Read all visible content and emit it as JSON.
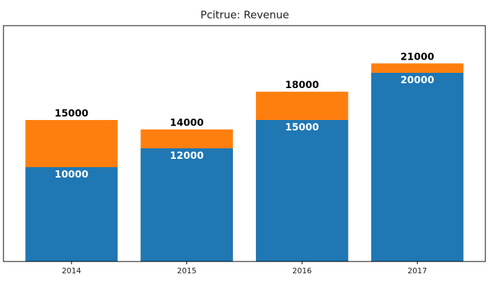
{
  "chart_data": {
    "type": "bar",
    "title": "Pcitrue: Revenue",
    "categories": [
      "2014",
      "2015",
      "2016",
      "2017"
    ],
    "stacked": false,
    "series": [
      {
        "color": "#ff7f0e",
        "values": [
          15000,
          14000,
          18000,
          21000
        ]
      },
      {
        "color": "#1f77b4",
        "values": [
          10000,
          12000,
          15000,
          20000
        ]
      }
    ],
    "ylim": [
      0,
      25000
    ]
  }
}
